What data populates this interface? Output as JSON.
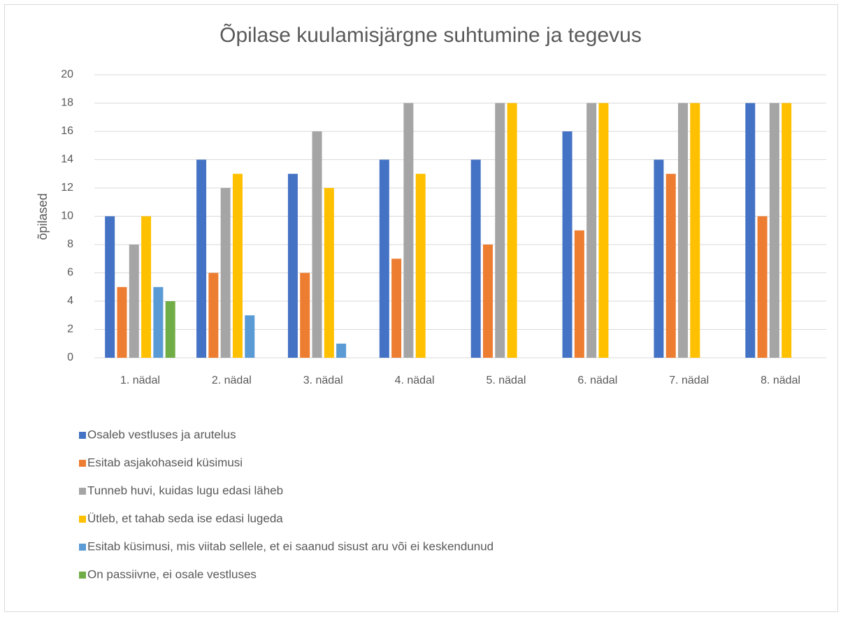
{
  "chart_data": {
    "type": "bar",
    "title": "Õpilase kuulamisjärgne suhtumine ja tegevus",
    "y_label": "õpilased",
    "categories": [
      "1. nädal",
      "2. nädal",
      "3. nädal",
      "4. nädal",
      "5. nädal",
      "6. nädal",
      "7. nädal",
      "8. nädal"
    ],
    "series": [
      {
        "name": "Osaleb vestluses ja arutelus",
        "color": "#4472c4",
        "values": [
          10,
          14,
          13,
          14,
          14,
          16,
          14,
          18
        ]
      },
      {
        "name": "Esitab asjakohaseid küsimusi",
        "color": "#ed7d31",
        "values": [
          5,
          6,
          6,
          7,
          8,
          9,
          13,
          10
        ]
      },
      {
        "name": "Tunneb huvi, kuidas lugu edasi läheb",
        "color": "#a5a5a5",
        "values": [
          8,
          12,
          16,
          18,
          18,
          18,
          18,
          18
        ]
      },
      {
        "name": "Ütleb, et tahab seda ise edasi lugeda",
        "color": "#ffc000",
        "values": [
          10,
          13,
          12,
          13,
          18,
          18,
          18,
          18
        ]
      },
      {
        "name": "Esitab küsimusi, mis viitab sellele, et ei saanud sisust aru või ei keskendunud",
        "color": "#5b9bd5",
        "values": [
          5,
          3,
          1,
          0,
          0,
          0,
          0,
          0
        ]
      },
      {
        "name": "On passiivne, ei osale vestluses",
        "color": "#70ad47",
        "values": [
          4,
          0,
          0,
          0,
          0,
          0,
          0,
          0
        ]
      }
    ],
    "ylim": [
      0,
      20
    ],
    "yticks": [
      0,
      2,
      4,
      6,
      8,
      10,
      12,
      14,
      16,
      18,
      20
    ],
    "grid": true,
    "legend": "bottom"
  }
}
